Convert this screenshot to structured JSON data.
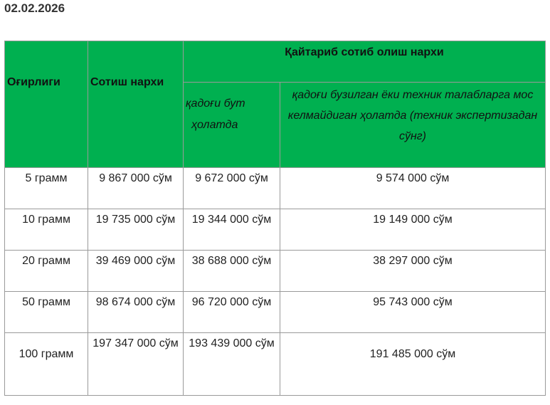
{
  "date": "02.02.2026",
  "header": {
    "weight": "Оғирлиги",
    "sell_price": "Сотиш  нархи",
    "buyback_price": "Қайтариб сотиб олиш нархи",
    "intact_line1": "қадоғи бут",
    "intact_line2": "ҳолатда",
    "damaged": "қадоғи бузилган ёки техник талабларга мос келмайдиган ҳолатда (техник экспертизадан сўнг)"
  },
  "accent_color": "#00b050",
  "rows": [
    {
      "weight": "5 грамм",
      "sell": "9 867 000 сўм",
      "intact": "9 672 000 сўм",
      "damaged": "9 574 000 сўм"
    },
    {
      "weight": "10 грамм",
      "sell": "19 735 000 сўм",
      "intact": "19 344 000 сўм",
      "damaged": "19 149 000 сўм"
    },
    {
      "weight": "20 грамм",
      "sell": "39 469 000 сўм",
      "intact": "38 688 000 сўм",
      "damaged": "38 297 000 сўм"
    },
    {
      "weight": "50 грамм",
      "sell": "98 674 000 сўм",
      "intact": "96 720 000 сўм",
      "damaged": "95 743 000 сўм"
    },
    {
      "weight": "100 грамм",
      "sell": "197 347 000 сўм",
      "intact": "193 439 000 сўм",
      "damaged": "191 485 000 сўм"
    }
  ]
}
